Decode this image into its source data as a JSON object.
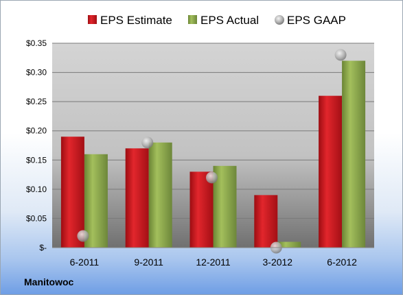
{
  "footer": {
    "company": "Manitowoc"
  },
  "colors": {
    "estimate": "#c8161d",
    "actual": "#8aa44a",
    "gaap": "#a7a7a7"
  },
  "chart_data": {
    "type": "bar",
    "categories": [
      "6-2011",
      "9-2011",
      "12-2011",
      "3-2012",
      "6-2012"
    ],
    "series": [
      {
        "name": "EPS Estimate",
        "kind": "bar",
        "values": [
          0.19,
          0.17,
          0.13,
          0.09,
          0.26
        ]
      },
      {
        "name": "EPS Actual",
        "kind": "bar",
        "values": [
          0.16,
          0.18,
          0.14,
          0.01,
          0.32
        ]
      },
      {
        "name": "EPS GAAP",
        "kind": "marker",
        "values": [
          0.02,
          0.18,
          0.12,
          0.0,
          0.33
        ]
      }
    ],
    "y_ticks": [
      {
        "value": 0,
        "label": "$-"
      },
      {
        "value": 0.05,
        "label": "$0.05"
      },
      {
        "value": 0.1,
        "label": "$0.10"
      },
      {
        "value": 0.15,
        "label": "$0.15"
      },
      {
        "value": 0.2,
        "label": "$0.20"
      },
      {
        "value": 0.25,
        "label": "$0.25"
      },
      {
        "value": 0.3,
        "label": "$0.30"
      },
      {
        "value": 0.35,
        "label": "$0.35"
      }
    ],
    "ylim": [
      0,
      0.35
    ],
    "grid": true,
    "legend_position": "top"
  }
}
